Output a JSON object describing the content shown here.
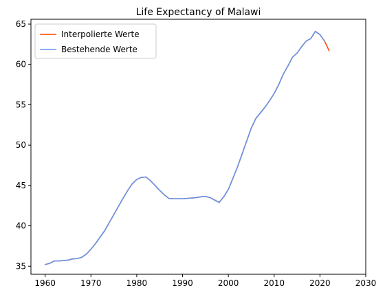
{
  "chart_data": {
    "type": "line",
    "title": "Life Expectancy of Malawi",
    "xlabel": "",
    "ylabel": "",
    "xlim": [
      1956.9,
      2030
    ],
    "ylim": [
      34.0,
      65.6
    ],
    "xticks": [
      1960,
      1970,
      1980,
      1990,
      2000,
      2010,
      2020,
      2030
    ],
    "yticks": [
      35,
      40,
      45,
      50,
      55,
      60,
      65
    ],
    "grid": false,
    "legend_position": "top-left",
    "series": [
      {
        "name": "Interpolierte Werte",
        "color": "#ff4500",
        "x": [
          1960,
          1961,
          1962,
          1963,
          1964,
          1965,
          1966,
          1967,
          1968,
          1969,
          1970,
          1971,
          1972,
          1973,
          1974,
          1975,
          1976,
          1977,
          1978,
          1979,
          1980,
          1981,
          1982,
          1983,
          1984,
          1985,
          1986,
          1987,
          1988,
          1989,
          1990,
          1991,
          1992,
          1993,
          1994,
          1995,
          1996,
          1997,
          1998,
          1999,
          2000,
          2001,
          2002,
          2003,
          2004,
          2005,
          2006,
          2007,
          2008,
          2009,
          2010,
          2011,
          2012,
          2013,
          2014,
          2015,
          2016,
          2017,
          2018,
          2019,
          2020,
          2021,
          2022
        ],
        "y": [
          35.2,
          35.35,
          35.65,
          35.65,
          35.7,
          35.75,
          35.9,
          35.95,
          36.1,
          36.5,
          37.1,
          37.8,
          38.6,
          39.4,
          40.4,
          41.4,
          42.4,
          43.4,
          44.35,
          45.2,
          45.75,
          46.0,
          46.05,
          45.6,
          45.0,
          44.4,
          43.85,
          43.4,
          43.35,
          43.35,
          43.35,
          43.4,
          43.45,
          43.5,
          43.6,
          43.65,
          43.5,
          43.2,
          42.9,
          43.6,
          44.5,
          45.9,
          47.3,
          48.9,
          50.5,
          52.1,
          53.3,
          54.0,
          54.7,
          55.5,
          56.4,
          57.5,
          58.8,
          59.8,
          60.9,
          61.4,
          62.2,
          62.9,
          63.2,
          64.1,
          63.7,
          62.9,
          61.7
        ]
      },
      {
        "name": "Bestehende Werte",
        "color": "#6495ed",
        "x": [
          1960,
          1961,
          1962,
          1963,
          1964,
          1965,
          1966,
          1967,
          1968,
          1969,
          1970,
          1971,
          1972,
          1973,
          1974,
          1975,
          1976,
          1977,
          1978,
          1979,
          1980,
          1981,
          1982,
          1983,
          1984,
          1985,
          1986,
          1987,
          1988,
          1989,
          1990,
          1991,
          1992,
          1993,
          1994,
          1995,
          1996,
          1997,
          1998,
          1999,
          2000,
          2001,
          2002,
          2003,
          2004,
          2005,
          2006,
          2007,
          2008,
          2009,
          2010,
          2011,
          2012,
          2013,
          2014,
          2015,
          2016,
          2017,
          2018,
          2019,
          2020,
          2021
        ],
        "y": [
          35.2,
          35.35,
          35.65,
          35.65,
          35.7,
          35.75,
          35.9,
          35.95,
          36.1,
          36.5,
          37.1,
          37.8,
          38.6,
          39.4,
          40.4,
          41.4,
          42.4,
          43.4,
          44.35,
          45.2,
          45.75,
          46.0,
          46.05,
          45.6,
          45.0,
          44.4,
          43.85,
          43.4,
          43.35,
          43.35,
          43.35,
          43.4,
          43.45,
          43.5,
          43.6,
          43.65,
          43.5,
          43.2,
          42.9,
          43.6,
          44.5,
          45.9,
          47.3,
          48.9,
          50.5,
          52.1,
          53.3,
          54.0,
          54.7,
          55.5,
          56.4,
          57.5,
          58.8,
          59.8,
          60.9,
          61.4,
          62.2,
          62.9,
          63.2,
          64.1,
          63.7,
          62.9
        ]
      }
    ]
  }
}
